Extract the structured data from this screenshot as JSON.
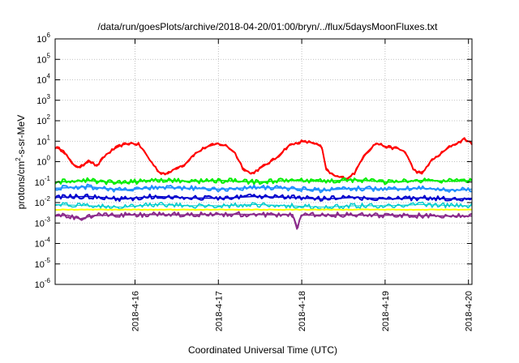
{
  "chart_data": {
    "type": "line",
    "title": "/data/run/goesPlots/archive/2018-04-20/01:00/bryn/../flux/5daysMoonFluxes.txt",
    "xlabel": "Coordinated Universal Time (UTC)",
    "ylabel": "protons/cm²-s-sr-MeV",
    "ylabel_parts": {
      "pre": "protons/cm",
      "sup": "2",
      "post": "-s-sr-MeV"
    },
    "xscale": "time (days)",
    "xlim": [
      "2018-04-15 01:00",
      "2018-04-20 01:00"
    ],
    "yscale": "log",
    "ylim": [
      1e-06,
      1000000.0
    ],
    "grid": true,
    "legend": "none",
    "x_ticks": [
      "2018-4-16",
      "2018-4-17",
      "2018-4-18",
      "2018-4-19",
      "2018-4-20"
    ],
    "x_tick_values_days": [
      0.958,
      1.958,
      2.958,
      3.958,
      4.958
    ],
    "y_tick_exponents": [
      -6,
      -5,
      -4,
      -3,
      -2,
      -1,
      0,
      1,
      2,
      3,
      4,
      5,
      6
    ],
    "y_tick_base": "10",
    "series": [
      {
        "color": "#ff0000",
        "width": 2,
        "points": [
          [
            0.0,
            5.0
          ],
          [
            0.1,
            3.5
          ],
          [
            0.2,
            0.8
          ],
          [
            0.3,
            0.5
          ],
          [
            0.4,
            1.2
          ],
          [
            0.5,
            0.6
          ],
          [
            0.6,
            2.0
          ],
          [
            0.7,
            4.0
          ],
          [
            0.8,
            6.5
          ],
          [
            0.9,
            8.0
          ],
          [
            1.0,
            7.0
          ],
          [
            1.05,
            4.0
          ],
          [
            1.15,
            1.0
          ],
          [
            1.25,
            0.3
          ],
          [
            1.35,
            0.25
          ],
          [
            1.45,
            0.5
          ],
          [
            1.55,
            0.7
          ],
          [
            1.65,
            2.0
          ],
          [
            1.8,
            5.0
          ],
          [
            1.95,
            7.5
          ],
          [
            2.05,
            6.0
          ],
          [
            2.15,
            3.0
          ],
          [
            2.25,
            0.5
          ],
          [
            2.35,
            0.25
          ],
          [
            2.5,
            0.6
          ],
          [
            2.65,
            1.5
          ],
          [
            2.8,
            6.0
          ],
          [
            2.95,
            9.5
          ],
          [
            3.1,
            8.5
          ],
          [
            3.2,
            5.0
          ],
          [
            3.25,
            0.4
          ],
          [
            3.35,
            0.2
          ],
          [
            3.5,
            0.15
          ],
          [
            3.6,
            0.3
          ],
          [
            3.7,
            2.0
          ],
          [
            3.85,
            8.0
          ],
          [
            4.0,
            5.0
          ],
          [
            4.1,
            4.5
          ],
          [
            4.2,
            3.0
          ],
          [
            4.3,
            0.4
          ],
          [
            4.4,
            0.25
          ],
          [
            4.5,
            1.0
          ],
          [
            4.6,
            2.0
          ],
          [
            4.75,
            6.0
          ],
          [
            4.85,
            9.0
          ],
          [
            4.9,
            13.0
          ],
          [
            5.0,
            8.0
          ]
        ]
      },
      {
        "color": "#00ee00",
        "width": 2,
        "points": [
          [
            0.0,
            0.1
          ],
          [
            0.4,
            0.12
          ],
          [
            0.8,
            0.09
          ],
          [
            1.2,
            0.13
          ],
          [
            1.6,
            0.11
          ],
          [
            2.0,
            0.12
          ],
          [
            2.4,
            0.1
          ],
          [
            2.8,
            0.12
          ],
          [
            3.2,
            0.11
          ],
          [
            3.6,
            0.13
          ],
          [
            4.0,
            0.1
          ],
          [
            4.4,
            0.12
          ],
          [
            4.8,
            0.11
          ],
          [
            5.0,
            0.12
          ]
        ]
      },
      {
        "color": "#1e90ff",
        "width": 2,
        "points": [
          [
            0.0,
            0.05
          ],
          [
            0.4,
            0.06
          ],
          [
            0.8,
            0.04
          ],
          [
            1.2,
            0.055
          ],
          [
            1.6,
            0.05
          ],
          [
            2.0,
            0.045
          ],
          [
            2.4,
            0.055
          ],
          [
            2.8,
            0.05
          ],
          [
            3.2,
            0.04
          ],
          [
            3.6,
            0.05
          ],
          [
            4.0,
            0.045
          ],
          [
            4.4,
            0.05
          ],
          [
            4.8,
            0.04
          ],
          [
            5.0,
            0.045
          ]
        ]
      },
      {
        "color": "#0000cd",
        "width": 2,
        "points": [
          [
            0.0,
            0.018
          ],
          [
            0.4,
            0.02
          ],
          [
            0.8,
            0.015
          ],
          [
            1.2,
            0.02
          ],
          [
            1.6,
            0.017
          ],
          [
            2.0,
            0.016
          ],
          [
            2.4,
            0.02
          ],
          [
            2.8,
            0.018
          ],
          [
            3.2,
            0.015
          ],
          [
            3.6,
            0.018
          ],
          [
            4.0,
            0.015
          ],
          [
            4.4,
            0.017
          ],
          [
            4.8,
            0.015
          ],
          [
            5.0,
            0.016
          ]
        ]
      },
      {
        "color": "#00cccc",
        "width": 1.5,
        "points": [
          [
            0.0,
            0.008
          ],
          [
            0.4,
            0.007
          ],
          [
            0.8,
            0.006
          ],
          [
            1.2,
            0.008
          ],
          [
            1.6,
            0.007
          ],
          [
            2.0,
            0.007
          ],
          [
            2.4,
            0.008
          ],
          [
            2.8,
            0.007
          ],
          [
            3.2,
            0.006
          ],
          [
            3.6,
            0.007
          ],
          [
            4.0,
            0.007
          ],
          [
            4.4,
            0.008
          ],
          [
            4.8,
            0.007
          ],
          [
            5.0,
            0.007
          ]
        ]
      },
      {
        "color": "#ffff00",
        "width": 2,
        "points": [
          [
            0.0,
            0.0045
          ],
          [
            1.0,
            0.0045
          ],
          [
            2.0,
            0.0045
          ],
          [
            3.0,
            0.0045
          ],
          [
            4.0,
            0.0045
          ],
          [
            5.0,
            0.0045
          ]
        ]
      },
      {
        "color": "#8b2a8b",
        "width": 2,
        "points": [
          [
            0.0,
            0.0022
          ],
          [
            0.15,
            0.0024
          ],
          [
            0.3,
            0.0016
          ],
          [
            0.45,
            0.0023
          ],
          [
            0.65,
            0.0024
          ],
          [
            0.9,
            0.0025
          ],
          [
            1.2,
            0.0026
          ],
          [
            1.5,
            0.0025
          ],
          [
            1.8,
            0.0026
          ],
          [
            2.1,
            0.0027
          ],
          [
            2.4,
            0.0026
          ],
          [
            2.7,
            0.0025
          ],
          [
            2.85,
            0.0026
          ],
          [
            2.9,
            0.0005
          ],
          [
            2.95,
            0.0024
          ],
          [
            3.2,
            0.0025
          ],
          [
            3.5,
            0.0025
          ],
          [
            3.8,
            0.0024
          ],
          [
            4.1,
            0.0024
          ],
          [
            4.4,
            0.0023
          ],
          [
            4.7,
            0.0022
          ],
          [
            5.0,
            0.0022
          ]
        ]
      }
    ]
  }
}
